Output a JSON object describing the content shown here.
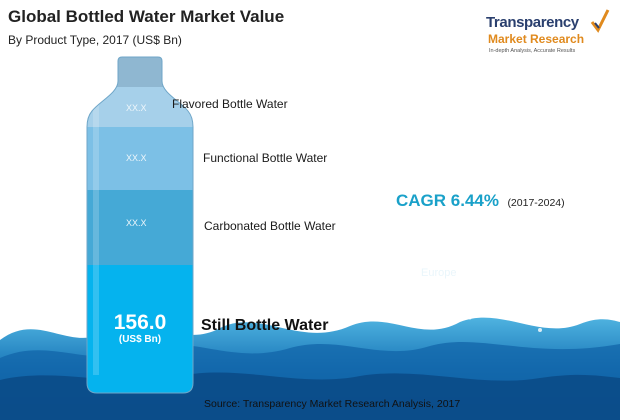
{
  "header": {
    "title": "Global Bottled Water Market Value",
    "subtitle": "By Product Type, 2017 (US$ Bn)"
  },
  "logo": {
    "name": "Transparency",
    "sub": "Market Research",
    "tagline": "In-depth Analysis, Accurate Results"
  },
  "chart_data": {
    "type": "bar",
    "title": "Global Bottled Water Market Value",
    "subtitle": "By Product Type, 2017 (US$ Bn)",
    "categories": [
      "Flavored Bottle Water",
      "Functional Bottle Water",
      "Carbonated Bottle Water",
      "Still Bottle Water"
    ],
    "value_labels": [
      "XX.X",
      "XX.X",
      "XX.X",
      "156.0"
    ],
    "values": [
      null,
      null,
      null,
      156.0
    ],
    "unit_label": "(US$ Bn)",
    "segment_colors": [
      "#a6d0ea",
      "#7cc0e6",
      "#45a9d6",
      "#05b3ee"
    ],
    "annotation": {
      "cagr": "CAGR 6.44%",
      "period": "(2017-2024)",
      "faint_text": "Europe"
    }
  },
  "footer": {
    "source": "Source: Transparency Market Research Analysis, 2017"
  }
}
